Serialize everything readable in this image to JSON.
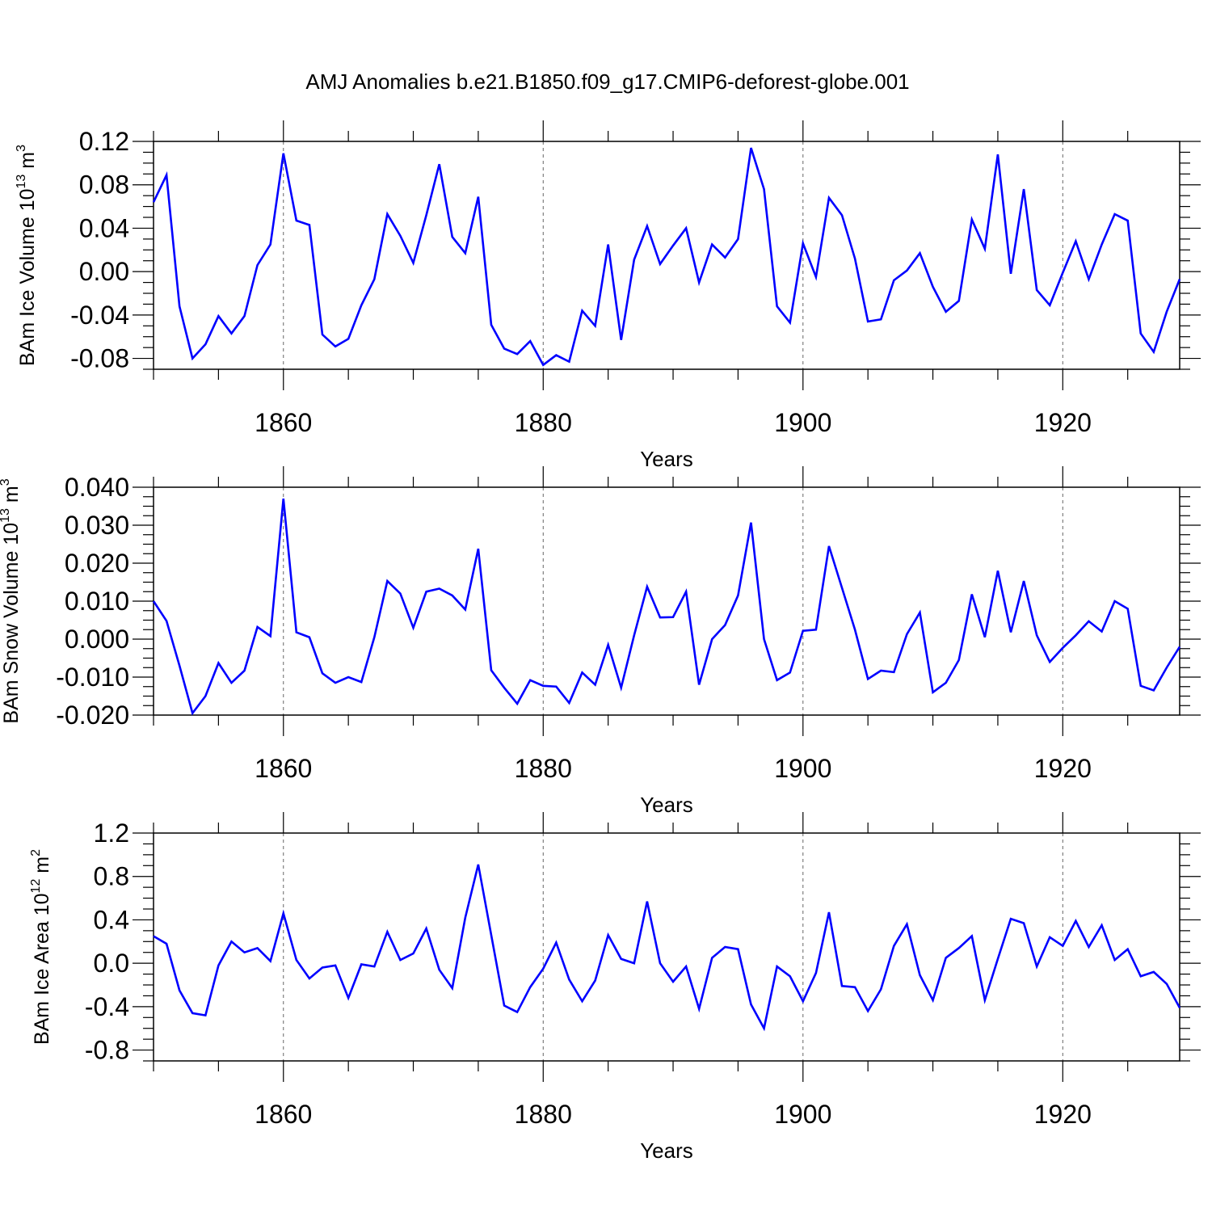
{
  "title": "AMJ Anomalies b.e21.B1850.f09_g17.CMIP6-deforest-globe.001",
  "line_color": "#0000ff",
  "chart_data": [
    {
      "type": "line",
      "ylabel_main": "BAm Ice Volume 10",
      "ylabel_exp": "13",
      "ylabel_unit": "m",
      "ylabel_unit_exp": "3",
      "xlabel": "Years",
      "xlim": [
        1850,
        1929
      ],
      "ylim": [
        -0.09,
        0.12
      ],
      "yticks": [
        -0.08,
        -0.04,
        0.0,
        0.04,
        0.08,
        0.12
      ],
      "ytick_labels": [
        "-0.08",
        "-0.04",
        "0.00",
        "0.04",
        "0.08",
        "0.12"
      ],
      "xticks": [
        1860,
        1880,
        1900,
        1920
      ],
      "xtick_labels": [
        "1860",
        "1880",
        "1900",
        "1920"
      ],
      "series": [
        {
          "name": "BAm Ice Volume",
          "x": [
            1850,
            1851,
            1852,
            1853,
            1854,
            1855,
            1856,
            1857,
            1858,
            1859,
            1860,
            1861,
            1862,
            1863,
            1864,
            1865,
            1866,
            1867,
            1868,
            1869,
            1870,
            1871,
            1872,
            1873,
            1874,
            1875,
            1876,
            1877,
            1878,
            1879,
            1880,
            1881,
            1882,
            1883,
            1884,
            1885,
            1886,
            1887,
            1888,
            1889,
            1890,
            1891,
            1892,
            1893,
            1894,
            1895,
            1896,
            1897,
            1898,
            1899,
            1900,
            1901,
            1902,
            1903,
            1904,
            1905,
            1906,
            1907,
            1908,
            1909,
            1910,
            1911,
            1912,
            1913,
            1914,
            1915,
            1916,
            1917,
            1918,
            1919,
            1920,
            1921,
            1922,
            1923,
            1924,
            1925,
            1926,
            1927,
            1928,
            1929
          ],
          "values": [
            0.064,
            0.089,
            -0.032,
            -0.08,
            -0.067,
            -0.041,
            -0.057,
            -0.041,
            0.006,
            0.025,
            0.109,
            0.047,
            0.043,
            -0.058,
            -0.069,
            -0.062,
            -0.031,
            -0.007,
            0.053,
            0.033,
            0.008,
            0.052,
            0.099,
            0.032,
            0.017,
            0.069,
            -0.049,
            -0.071,
            -0.076,
            -0.064,
            -0.086,
            -0.077,
            -0.083,
            -0.036,
            -0.05,
            0.025,
            -0.063,
            0.011,
            0.042,
            0.007,
            0.024,
            0.04,
            -0.01,
            0.025,
            0.013,
            0.03,
            0.114,
            0.076,
            -0.032,
            -0.047,
            0.026,
            -0.005,
            0.068,
            0.052,
            0.012,
            -0.046,
            -0.044,
            -0.008,
            0.001,
            0.017,
            -0.014,
            -0.037,
            -0.027,
            0.048,
            0.021,
            0.108,
            -0.002,
            0.076,
            -0.017,
            -0.031,
            -0.001,
            0.028,
            -0.007,
            0.025,
            0.053,
            0.047,
            -0.057,
            -0.074,
            -0.037,
            -0.007
          ]
        }
      ]
    },
    {
      "type": "line",
      "ylabel_main": "BAm Snow Volume 10",
      "ylabel_exp": "13",
      "ylabel_unit": "m",
      "ylabel_unit_exp": "3",
      "xlabel": "Years",
      "xlim": [
        1850,
        1929
      ],
      "ylim": [
        -0.02,
        0.04
      ],
      "yticks": [
        -0.02,
        -0.01,
        0.0,
        0.01,
        0.02,
        0.03,
        0.04
      ],
      "ytick_labels": [
        "-0.020",
        "-0.010",
        "0.000",
        "0.010",
        "0.020",
        "0.030",
        "0.040"
      ],
      "xticks": [
        1860,
        1880,
        1900,
        1920
      ],
      "xtick_labels": [
        "1860",
        "1880",
        "1900",
        "1920"
      ],
      "series": [
        {
          "name": "BAm Snow Volume",
          "x": [
            1850,
            1851,
            1852,
            1853,
            1854,
            1855,
            1856,
            1857,
            1858,
            1859,
            1860,
            1861,
            1862,
            1863,
            1864,
            1865,
            1866,
            1867,
            1868,
            1869,
            1870,
            1871,
            1872,
            1873,
            1874,
            1875,
            1876,
            1877,
            1878,
            1879,
            1880,
            1881,
            1882,
            1883,
            1884,
            1885,
            1886,
            1887,
            1888,
            1889,
            1890,
            1891,
            1892,
            1893,
            1894,
            1895,
            1896,
            1897,
            1898,
            1899,
            1900,
            1901,
            1902,
            1903,
            1904,
            1905,
            1906,
            1907,
            1908,
            1909,
            1910,
            1911,
            1912,
            1913,
            1914,
            1915,
            1916,
            1917,
            1918,
            1919,
            1920,
            1921,
            1922,
            1923,
            1924,
            1925,
            1926,
            1927,
            1928,
            1929
          ],
          "values": [
            0.01,
            0.0048,
            -0.007,
            -0.0195,
            -0.015,
            -0.0063,
            -0.0115,
            -0.0083,
            0.0032,
            0.0008,
            0.037,
            0.0018,
            0.0005,
            -0.009,
            -0.0115,
            -0.01,
            -0.0113,
            0.0005,
            0.0153,
            0.012,
            0.003,
            0.0125,
            0.0133,
            0.0115,
            0.0078,
            0.0238,
            -0.0082,
            -0.0128,
            -0.017,
            -0.0108,
            -0.0123,
            -0.0125,
            -0.0168,
            -0.0088,
            -0.012,
            -0.0015,
            -0.0128,
            0.001,
            0.0138,
            0.0057,
            0.0058,
            0.0125,
            -0.012,
            0.0,
            0.0037,
            0.0115,
            0.0307,
            0.0,
            -0.0108,
            -0.0088,
            0.0022,
            0.0025,
            0.0245,
            0.0135,
            0.0025,
            -0.0105,
            -0.0083,
            -0.0087,
            0.0013,
            0.007,
            -0.014,
            -0.0115,
            -0.0055,
            0.0118,
            0.0005,
            0.018,
            0.0018,
            0.0153,
            0.001,
            -0.006,
            -0.0023,
            0.001,
            0.0047,
            0.002,
            0.01,
            0.008,
            -0.0123,
            -0.0135,
            -0.0075,
            -0.002
          ]
        }
      ]
    },
    {
      "type": "line",
      "ylabel_main": "BAm Ice Area 10",
      "ylabel_exp": "12",
      "ylabel_unit": "m",
      "ylabel_unit_exp": "2",
      "xlabel": "Years",
      "xlim": [
        1850,
        1929
      ],
      "ylim": [
        -0.9,
        1.2
      ],
      "yticks": [
        -0.8,
        -0.4,
        0.0,
        0.4,
        0.8,
        1.2
      ],
      "ytick_labels": [
        "-0.8",
        "-0.4",
        "0.0",
        "0.4",
        "0.8",
        "1.2"
      ],
      "xticks": [
        1860,
        1880,
        1900,
        1920
      ],
      "xtick_labels": [
        "1860",
        "1880",
        "1900",
        "1920"
      ],
      "series": [
        {
          "name": "BAm Ice Area",
          "x": [
            1850,
            1851,
            1852,
            1853,
            1854,
            1855,
            1856,
            1857,
            1858,
            1859,
            1860,
            1861,
            1862,
            1863,
            1864,
            1865,
            1866,
            1867,
            1868,
            1869,
            1870,
            1871,
            1872,
            1873,
            1874,
            1875,
            1876,
            1877,
            1878,
            1879,
            1880,
            1881,
            1882,
            1883,
            1884,
            1885,
            1886,
            1887,
            1888,
            1889,
            1890,
            1891,
            1892,
            1893,
            1894,
            1895,
            1896,
            1897,
            1898,
            1899,
            1900,
            1901,
            1902,
            1903,
            1904,
            1905,
            1906,
            1907,
            1908,
            1909,
            1910,
            1911,
            1912,
            1913,
            1914,
            1915,
            1916,
            1917,
            1918,
            1919,
            1920,
            1921,
            1922,
            1923,
            1924,
            1925,
            1926,
            1927,
            1928,
            1929
          ],
          "values": [
            0.25,
            0.18,
            -0.25,
            -0.46,
            -0.48,
            -0.02,
            0.2,
            0.1,
            0.14,
            0.02,
            0.46,
            0.03,
            -0.14,
            -0.04,
            -0.02,
            -0.32,
            -0.01,
            -0.03,
            0.29,
            0.03,
            0.09,
            0.32,
            -0.06,
            -0.23,
            0.42,
            0.91,
            0.26,
            -0.39,
            -0.45,
            -0.22,
            -0.05,
            0.19,
            -0.15,
            -0.35,
            -0.16,
            0.26,
            0.04,
            0.0,
            0.57,
            0.0,
            -0.17,
            -0.03,
            -0.42,
            0.05,
            0.15,
            0.13,
            -0.38,
            -0.6,
            -0.03,
            -0.12,
            -0.35,
            -0.09,
            0.47,
            -0.21,
            -0.22,
            -0.44,
            -0.24,
            0.16,
            0.36,
            -0.11,
            -0.34,
            0.05,
            0.14,
            0.25,
            -0.34,
            0.04,
            0.41,
            0.37,
            -0.03,
            0.24,
            0.16,
            0.39,
            0.15,
            0.35,
            0.03,
            0.13,
            -0.12,
            -0.08,
            -0.19,
            -0.41
          ]
        }
      ]
    }
  ]
}
